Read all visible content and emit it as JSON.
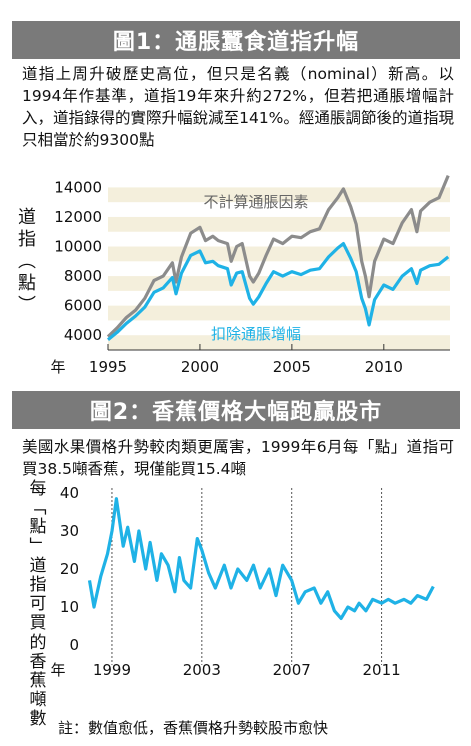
{
  "figure1": {
    "title": "圖1：通脹蠶食道指升幅",
    "caption": "道指上周升破歷史高位，但只是名義（nominal）新高。以1994年作基準，道指19年來升約272%，但若把通脹增幅計入，道指錄得的實際升幅銳減至141%。經通脹調節後的道指現只相當於約9300點",
    "ylabel_chars": [
      "道",
      "指",
      "︵",
      "點",
      "︶"
    ],
    "xlabel": "年"
  },
  "figure2": {
    "title": "圖2：香蕉價格大幅跑贏股市",
    "caption": "美國水果價格升勢較肉類更厲害，1999年6月每「點」道指可買38.5噸香蕉，現僅能買15.4噸",
    "ylabel_chars": [
      "每",
      "﹁",
      "點",
      "﹂",
      "道",
      "指",
      "可",
      "買",
      "的",
      "香",
      "蕉",
      "噸",
      "數"
    ],
    "xlabel": "年",
    "note": "註：數值愈低，香蕉價格升勢較股市愈快"
  },
  "colors": {
    "title_bg": "#7a7a7a",
    "band": "#f4efdc",
    "nominal": "#8c8c8c",
    "real": "#1fb2e6"
  },
  "chart_data": [
    {
      "type": "line",
      "title": "圖1：通脹蠶食道指升幅",
      "xlabel": "年",
      "ylabel": "道指（點）",
      "xlim": [
        1995,
        2013.6
      ],
      "ylim": [
        3000,
        14500
      ],
      "xticks": [
        1995,
        2000,
        2005,
        2010
      ],
      "yticks": [
        4000,
        6000,
        8000,
        10000,
        12000,
        14000
      ],
      "grid": false,
      "series": [
        {
          "name": "不計算通脹因素",
          "x": [
            1995.0,
            1995.5,
            1996.0,
            1996.5,
            1997.0,
            1997.5,
            1998.0,
            1998.5,
            1998.7,
            1999.0,
            1999.5,
            2000.0,
            2000.3,
            2000.7,
            2001.0,
            2001.5,
            2001.7,
            2002.0,
            2002.3,
            2002.7,
            2002.9,
            2003.2,
            2003.6,
            2004.0,
            2004.5,
            2005.0,
            2005.5,
            2006.0,
            2006.5,
            2007.0,
            2007.5,
            2007.8,
            2008.2,
            2008.5,
            2008.8,
            2009.0,
            2009.2,
            2009.5,
            2010.0,
            2010.5,
            2011.0,
            2011.5,
            2011.8,
            2012.0,
            2012.5,
            2013.0,
            2013.5
          ],
          "values": [
            3900,
            4500,
            5200,
            5700,
            6500,
            7700,
            8000,
            8900,
            7600,
            9300,
            10900,
            11300,
            10400,
            10700,
            10400,
            10200,
            9000,
            10000,
            10200,
            8000,
            7600,
            8200,
            9400,
            10500,
            10200,
            10700,
            10600,
            11000,
            11200,
            12500,
            13300,
            13900,
            12700,
            11500,
            9000,
            8000,
            6600,
            9000,
            10500,
            10200,
            11600,
            12500,
            11000,
            12400,
            13000,
            13300,
            14800
          ]
        },
        {
          "name": "扣除通脹增幅",
          "x": [
            1995.0,
            1995.5,
            1996.0,
            1996.5,
            1997.0,
            1997.5,
            1998.0,
            1998.5,
            1998.7,
            1999.0,
            1999.5,
            2000.0,
            2000.3,
            2000.7,
            2001.0,
            2001.5,
            2001.7,
            2002.0,
            2002.3,
            2002.7,
            2002.9,
            2003.2,
            2003.6,
            2004.0,
            2004.5,
            2005.0,
            2005.5,
            2006.0,
            2006.5,
            2007.0,
            2007.5,
            2007.8,
            2008.2,
            2008.5,
            2008.8,
            2009.0,
            2009.2,
            2009.5,
            2010.0,
            2010.5,
            2011.0,
            2011.5,
            2011.8,
            2012.0,
            2012.5,
            2013.0,
            2013.5
          ],
          "values": [
            3700,
            4200,
            4800,
            5300,
            5900,
            6900,
            7200,
            7900,
            6800,
            8200,
            9400,
            9700,
            8900,
            9000,
            8700,
            8500,
            7400,
            8200,
            8300,
            6500,
            6100,
            6600,
            7500,
            8300,
            8000,
            8300,
            8100,
            8400,
            8500,
            9300,
            9900,
            10200,
            9200,
            8300,
            6500,
            5800,
            4700,
            6400,
            7400,
            7100,
            8000,
            8500,
            7500,
            8400,
            8700,
            8800,
            9300
          ]
        }
      ]
    },
    {
      "type": "line",
      "title": "圖2：香蕉價格大幅跑贏股市",
      "xlabel": "年",
      "ylabel": "每「點」道指可買的香蕉噸數",
      "xlim": [
        1997.4,
        2013.6
      ],
      "ylim": [
        0,
        40
      ],
      "xticks": [
        1999,
        2003,
        2007,
        2011
      ],
      "yticks": [
        0,
        10,
        20,
        30,
        40
      ],
      "grid": false,
      "series": [
        {
          "x": [
            1998.0,
            1998.2,
            1998.5,
            1998.8,
            1999.0,
            1999.2,
            1999.5,
            1999.7,
            2000.0,
            2000.2,
            2000.5,
            2000.7,
            2001.0,
            2001.2,
            2001.5,
            2001.8,
            2002.0,
            2002.2,
            2002.5,
            2002.8,
            2003.0,
            2003.3,
            2003.6,
            2004.0,
            2004.3,
            2004.6,
            2005.0,
            2005.3,
            2005.6,
            2006.0,
            2006.3,
            2006.6,
            2007.0,
            2007.3,
            2007.6,
            2008.0,
            2008.3,
            2008.6,
            2008.9,
            2009.2,
            2009.5,
            2009.8,
            2010.0,
            2010.3,
            2010.6,
            2011.0,
            2011.3,
            2011.6,
            2012.0,
            2012.3,
            2012.6,
            2013.0,
            2013.3
          ],
          "values": [
            17,
            10,
            18,
            24,
            30,
            38.5,
            26,
            31,
            22,
            30,
            20,
            27,
            17,
            24,
            21,
            14,
            23,
            17,
            15,
            28,
            25,
            19,
            15,
            21,
            15,
            20,
            17,
            21,
            15,
            20,
            13,
            21,
            17,
            11,
            14,
            15,
            11,
            14,
            9,
            7,
            10,
            9,
            11,
            9,
            12,
            11,
            12,
            11,
            12,
            11,
            13,
            12,
            15.4
          ]
        }
      ]
    }
  ]
}
